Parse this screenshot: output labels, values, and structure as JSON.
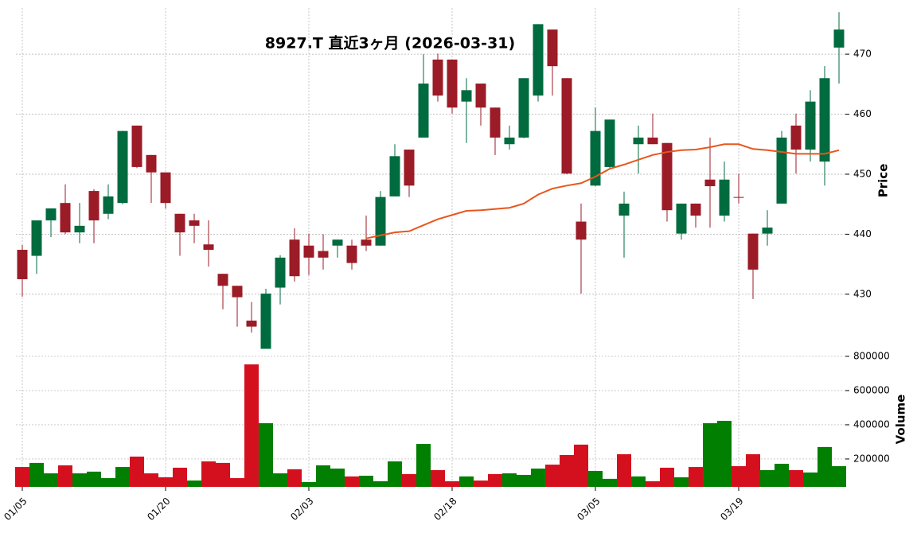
{
  "chart_data": {
    "type": "candlestick",
    "title": "8927.T  直近3ヶ月  (2026-03-31)",
    "categories": [
      "01/05",
      null,
      null,
      null,
      null,
      null,
      null,
      null,
      null,
      null,
      "01/20",
      null,
      null,
      null,
      null,
      null,
      null,
      null,
      null,
      null,
      "02/03",
      null,
      null,
      null,
      null,
      null,
      null,
      null,
      null,
      null,
      "02/18",
      null,
      null,
      null,
      null,
      null,
      null,
      null,
      null,
      null,
      "03/05",
      null,
      null,
      null,
      null,
      null,
      null,
      null,
      null,
      null,
      "03/19",
      null,
      null,
      null,
      null,
      null,
      null,
      null
    ],
    "open": [
      437.4,
      436.4,
      442.3,
      445.2,
      440.3,
      447.2,
      443.4,
      445.2,
      458.1,
      453.2,
      450.3,
      443.4,
      442.3,
      438.3,
      433.4,
      431.4,
      425.6,
      420.9,
      431.1,
      439.1,
      438.1,
      437.2,
      438.1,
      438.1,
      439.1,
      438.1,
      446.3,
      454.1,
      456.1,
      469.1,
      469.1,
      462.1,
      465.1,
      461.1,
      455.0,
      456.1,
      463.1,
      474.1,
      466.0,
      442.1,
      448.1,
      451.2,
      443.1,
      455.0,
      456.1,
      455.2,
      440.1,
      445.1,
      449.1,
      443.1,
      446.2,
      440.1,
      440.1,
      445.1,
      458.1,
      454.1,
      452.1,
      471.1
    ],
    "high": [
      438.2,
      442.3,
      444.3,
      448.3,
      445.2,
      447.5,
      448.3,
      457.2,
      458.1,
      453.2,
      450.3,
      443.4,
      443.4,
      442.3,
      433.4,
      431.4,
      428.7,
      430.9,
      436.5,
      441.0,
      440.1,
      440.0,
      439.1,
      439.1,
      443.1,
      447.2,
      455.0,
      454.1,
      470.0,
      470.1,
      469.1,
      466.0,
      465.1,
      461.1,
      458.1,
      466.0,
      475.0,
      474.1,
      466.0,
      445.1,
      461.1,
      459.1,
      447.1,
      458.1,
      460.1,
      455.2,
      445.1,
      445.1,
      456.1,
      452.1,
      450.1,
      440.1,
      444.0,
      457.2,
      460.1,
      464.0,
      468.0,
      477.0
    ],
    "low": [
      429.6,
      433.4,
      439.5,
      440.0,
      438.5,
      438.5,
      442.5,
      445.0,
      451.0,
      445.2,
      444.3,
      436.4,
      438.5,
      434.6,
      427.5,
      424.6,
      423.6,
      421.0,
      428.3,
      432.1,
      433.2,
      434.1,
      436.1,
      434.1,
      437.2,
      438.1,
      446.3,
      446.2,
      456.1,
      462.1,
      460.1,
      455.2,
      458.1,
      453.2,
      454.1,
      456.0,
      462.1,
      463.1,
      450.0,
      430.1,
      448.0,
      451.0,
      436.1,
      450.1,
      455.0,
      442.1,
      439.1,
      441.1,
      441.1,
      442.1,
      445.1,
      429.2,
      438.1,
      445.1,
      450.1,
      452.1,
      448.1,
      465.1
    ],
    "close": [
      432.5,
      442.3,
      444.3,
      440.3,
      441.4,
      442.3,
      446.3,
      457.2,
      451.2,
      450.3,
      445.2,
      440.3,
      441.4,
      437.4,
      431.4,
      429.5,
      424.6,
      430.1,
      436.1,
      433.0,
      436.1,
      436.1,
      439.1,
      435.2,
      438.1,
      446.2,
      453.0,
      448.1,
      465.1,
      463.1,
      461.1,
      464.0,
      461.1,
      456.1,
      456.1,
      466.0,
      475.0,
      468.0,
      450.1,
      439.1,
      457.2,
      459.1,
      445.1,
      456.1,
      455.0,
      444.0,
      445.1,
      443.1,
      448.0,
      449.1,
      446.1,
      434.1,
      441.1,
      456.1,
      454.1,
      462.1,
      466.0,
      474.1
    ],
    "ma": {
      "color": "#e8561b",
      "values": [
        null,
        null,
        null,
        null,
        null,
        null,
        null,
        null,
        null,
        null,
        null,
        null,
        null,
        null,
        null,
        null,
        null,
        null,
        null,
        null,
        null,
        null,
        null,
        null,
        439.3,
        439.8,
        440.3,
        440.5,
        441.5,
        442.5,
        443.2,
        443.9,
        444.0,
        444.2,
        444.4,
        445.1,
        446.6,
        447.6,
        448.1,
        448.5,
        449.6,
        450.9,
        451.6,
        452.4,
        453.2,
        453.7,
        454.0,
        454.1,
        454.5,
        455.0,
        455.0,
        454.2,
        454.0,
        453.7,
        453.4,
        453.4,
        453.4,
        454.0
      ]
    },
    "volume": [
      153000,
      177000,
      116000,
      163000,
      116000,
      126000,
      88000,
      153000,
      214000,
      116000,
      93000,
      149000,
      74000,
      186000,
      177000,
      88000,
      753000,
      409000,
      116000,
      140000,
      65000,
      163000,
      144000,
      98000,
      102000,
      70000,
      186000,
      112000,
      288000,
      135000,
      70000,
      98000,
      74000,
      112000,
      116000,
      107000,
      144000,
      167000,
      223000,
      284000,
      130000,
      84000,
      228000,
      98000,
      70000,
      149000,
      93000,
      153000,
      409000,
      423000,
      158000,
      228000,
      135000,
      172000,
      135000,
      121000,
      270000,
      158000
    ],
    "up_color": "#006b3f",
    "down_color": "#9b1b27",
    "volume_up_color": "#007f00",
    "volume_down_color": "#d5101e",
    "ylabel": "Price",
    "ylim": [
      420.7,
      477.7
    ],
    "yticks": [
      430,
      440,
      450,
      460,
      470
    ],
    "volume_ylabel": "Volume",
    "volume_ylim": [
      37000,
      837000
    ],
    "volume_yticks": [
      200000,
      400000,
      600000,
      800000
    ],
    "grid": true
  }
}
